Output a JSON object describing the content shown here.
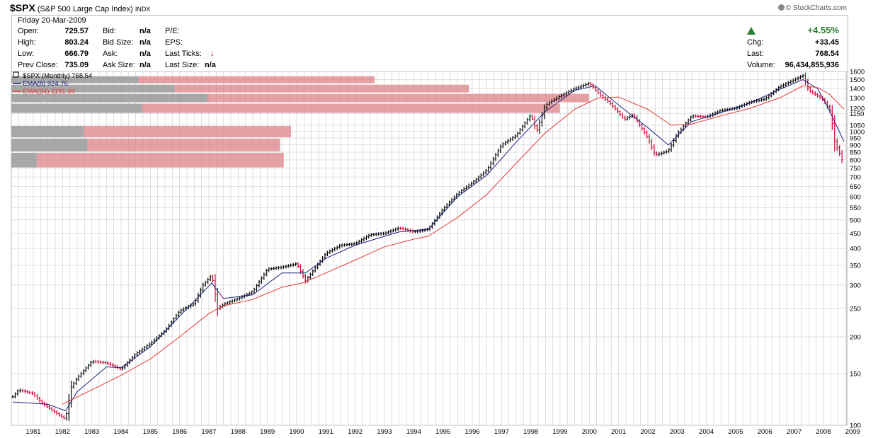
{
  "header": {
    "symbol": "$SPX",
    "name": "(S&P 500 Large Cap Index)",
    "exchange": "INDX",
    "credit": "© StockCharts.com"
  },
  "quote": {
    "date": "Friday  20-Mar-2009",
    "labels": {
      "open": "Open:",
      "high": "High:",
      "low": "Low:",
      "prev": "Prev Close:",
      "bid": "Bid:",
      "bidsize": "Bid Size:",
      "ask": "Ask:",
      "asksize": "Ask Size:",
      "pe": "P/E:",
      "eps": "EPS:",
      "lastticks": "Last Ticks:",
      "lastsize": "Last Size:",
      "chg": "Chg:",
      "last": "Last:",
      "volume": "Volume:"
    },
    "open": "729.57",
    "high": "803.24",
    "low": "666.79",
    "prev_close": "735.09",
    "bid": "n/a",
    "bid_size": "n/a",
    "ask": "n/a",
    "ask_size": "n/a",
    "last_size": "n/a",
    "pct_change": "+4.55%",
    "chg": "+33.45",
    "last": "768.54",
    "volume": "96,434,855,936"
  },
  "colors": {
    "up": "#000000",
    "down": "#cc0033",
    "ema8": "#1a237e",
    "ema34": "#e53935",
    "vbp_gray": "#9e9e9e",
    "vbp_red": "#e08a8f",
    "grid": "#d3d3d3"
  },
  "chart_data": {
    "type": "line",
    "legend_position": "top-left",
    "y_scale": "log",
    "ylim": [
      100,
      1600
    ],
    "xlim": [
      1980.75,
      2009.3
    ],
    "grid": true,
    "legend": {
      "main": "$SPX (Monthly) 768.54",
      "ema8": "EMA(8) 924.76",
      "ema34": "EMA(34) 1191.04"
    },
    "y_ticks": [
      100,
      150,
      200,
      250,
      300,
      350,
      400,
      450,
      500,
      550,
      600,
      650,
      700,
      750,
      800,
      850,
      900,
      950,
      1000,
      1050,
      1150,
      1200,
      1300,
      1400,
      1500,
      1600
    ],
    "x_labels": [
      "1981",
      "1982",
      "1983",
      "1984",
      "1985",
      "1986",
      "1987",
      "1988",
      "1989",
      "1990",
      "1991",
      "1992",
      "1993",
      "1994",
      "1995",
      "1996",
      "1997",
      "1998",
      "1999",
      "2000",
      "2001",
      "2002",
      "2003",
      "2004",
      "2005",
      "2006",
      "2007",
      "2008",
      "2009"
    ],
    "series": [
      {
        "name": "$SPX",
        "x": [
          1980.8,
          1981.0,
          1981.5,
          1981.75,
          1982.0,
          1982.4,
          1982.6,
          1982.8,
          1983.0,
          1983.5,
          1984.0,
          1984.5,
          1985.0,
          1985.5,
          1986.0,
          1986.5,
          1987.0,
          1987.3,
          1987.6,
          1987.8,
          1988.0,
          1988.5,
          1989.0,
          1989.5,
          1990.0,
          1990.5,
          1990.8,
          1991.0,
          1991.5,
          1992.0,
          1992.5,
          1993.0,
          1993.5,
          1994.0,
          1994.5,
          1995.0,
          1995.5,
          1996.0,
          1996.5,
          1997.0,
          1997.5,
          1998.0,
          1998.5,
          1998.7,
          1999.0,
          1999.5,
          2000.0,
          2000.5,
          2000.9,
          2001.2,
          2001.7,
          2002.0,
          2002.5,
          2002.75,
          2003.2,
          2003.5,
          2004.0,
          2004.5,
          2005.0,
          2005.5,
          2006.0,
          2006.5,
          2007.0,
          2007.5,
          2007.8,
          2008.0,
          2008.5,
          2008.75,
          2008.9,
          2009.0,
          2009.2
        ],
        "values": [
          125,
          132,
          128,
          120,
          115,
          108,
          105,
          135,
          145,
          165,
          163,
          155,
          175,
          190,
          210,
          245,
          260,
          300,
          325,
          250,
          258,
          270,
          285,
          340,
          345,
          355,
          310,
          330,
          385,
          410,
          415,
          445,
          450,
          470,
          455,
          465,
          545,
          615,
          670,
          740,
          900,
          970,
          1140,
          1000,
          1230,
          1320,
          1400,
          1460,
          1320,
          1250,
          1100,
          1140,
          950,
          830,
          860,
          980,
          1130,
          1120,
          1180,
          1200,
          1260,
          1290,
          1420,
          1500,
          1550,
          1380,
          1280,
          1160,
          900,
          870,
          768.54
        ]
      },
      {
        "name": "EMA(8)",
        "x": [
          1980.8,
          1982.0,
          1982.6,
          1983.0,
          1984.0,
          1984.5,
          1985.5,
          1986.5,
          1987.6,
          1988.0,
          1989.0,
          1990.0,
          1990.8,
          1991.5,
          1992.5,
          1994.0,
          1995.0,
          1996.0,
          1997.0,
          1998.0,
          1999.0,
          2000.0,
          2000.7,
          2001.5,
          2002.5,
          2003.2,
          2004.0,
          2005.0,
          2006.0,
          2007.0,
          2007.8,
          2008.3,
          2008.7,
          2009.2
        ],
        "values": [
          120,
          118,
          112,
          130,
          158,
          157,
          185,
          235,
          305,
          270,
          278,
          330,
          330,
          370,
          410,
          455,
          465,
          600,
          710,
          920,
          1170,
          1380,
          1430,
          1230,
          1030,
          900,
          1080,
          1160,
          1250,
          1390,
          1500,
          1400,
          1180,
          924.76
        ]
      },
      {
        "name": "EMA(34)",
        "x": [
          1982.5,
          1983.5,
          1984.5,
          1985.5,
          1986.5,
          1987.5,
          1988.0,
          1989.0,
          1990.0,
          1990.7,
          1991.5,
          1992.5,
          1993.5,
          1994.5,
          1995.0,
          1996.0,
          1997.0,
          1998.0,
          1999.0,
          2000.0,
          2000.8,
          2001.5,
          2002.5,
          2003.3,
          2004.0,
          2005.0,
          2006.0,
          2007.0,
          2007.8,
          2008.3,
          2008.7,
          2009.2
        ],
        "values": [
          118,
          132,
          148,
          168,
          200,
          240,
          255,
          268,
          295,
          305,
          330,
          365,
          405,
          430,
          440,
          510,
          610,
          780,
          990,
          1190,
          1300,
          1310,
          1190,
          1050,
          1060,
          1130,
          1200,
          1300,
          1430,
          1410,
          1340,
          1191.04
        ]
      }
    ],
    "volume_by_price": [
      {
        "low": 750,
        "high": 850,
        "down": 0.75,
        "up": 0.07
      },
      {
        "low": 850,
        "high": 950,
        "down": 0.74,
        "up": 0.21
      },
      {
        "low": 950,
        "high": 1050,
        "down": 0.77,
        "up": 0.2
      },
      {
        "low": 1150,
        "high": 1250,
        "down": 1.51,
        "up": 0.36
      },
      {
        "low": 1250,
        "high": 1350,
        "down": 1.59,
        "up": 0.54
      },
      {
        "low": 1350,
        "high": 1450,
        "down": 1.26,
        "up": 0.45
      },
      {
        "low": 1450,
        "high": 1550,
        "down": 1.0,
        "up": 0.35
      }
    ]
  }
}
